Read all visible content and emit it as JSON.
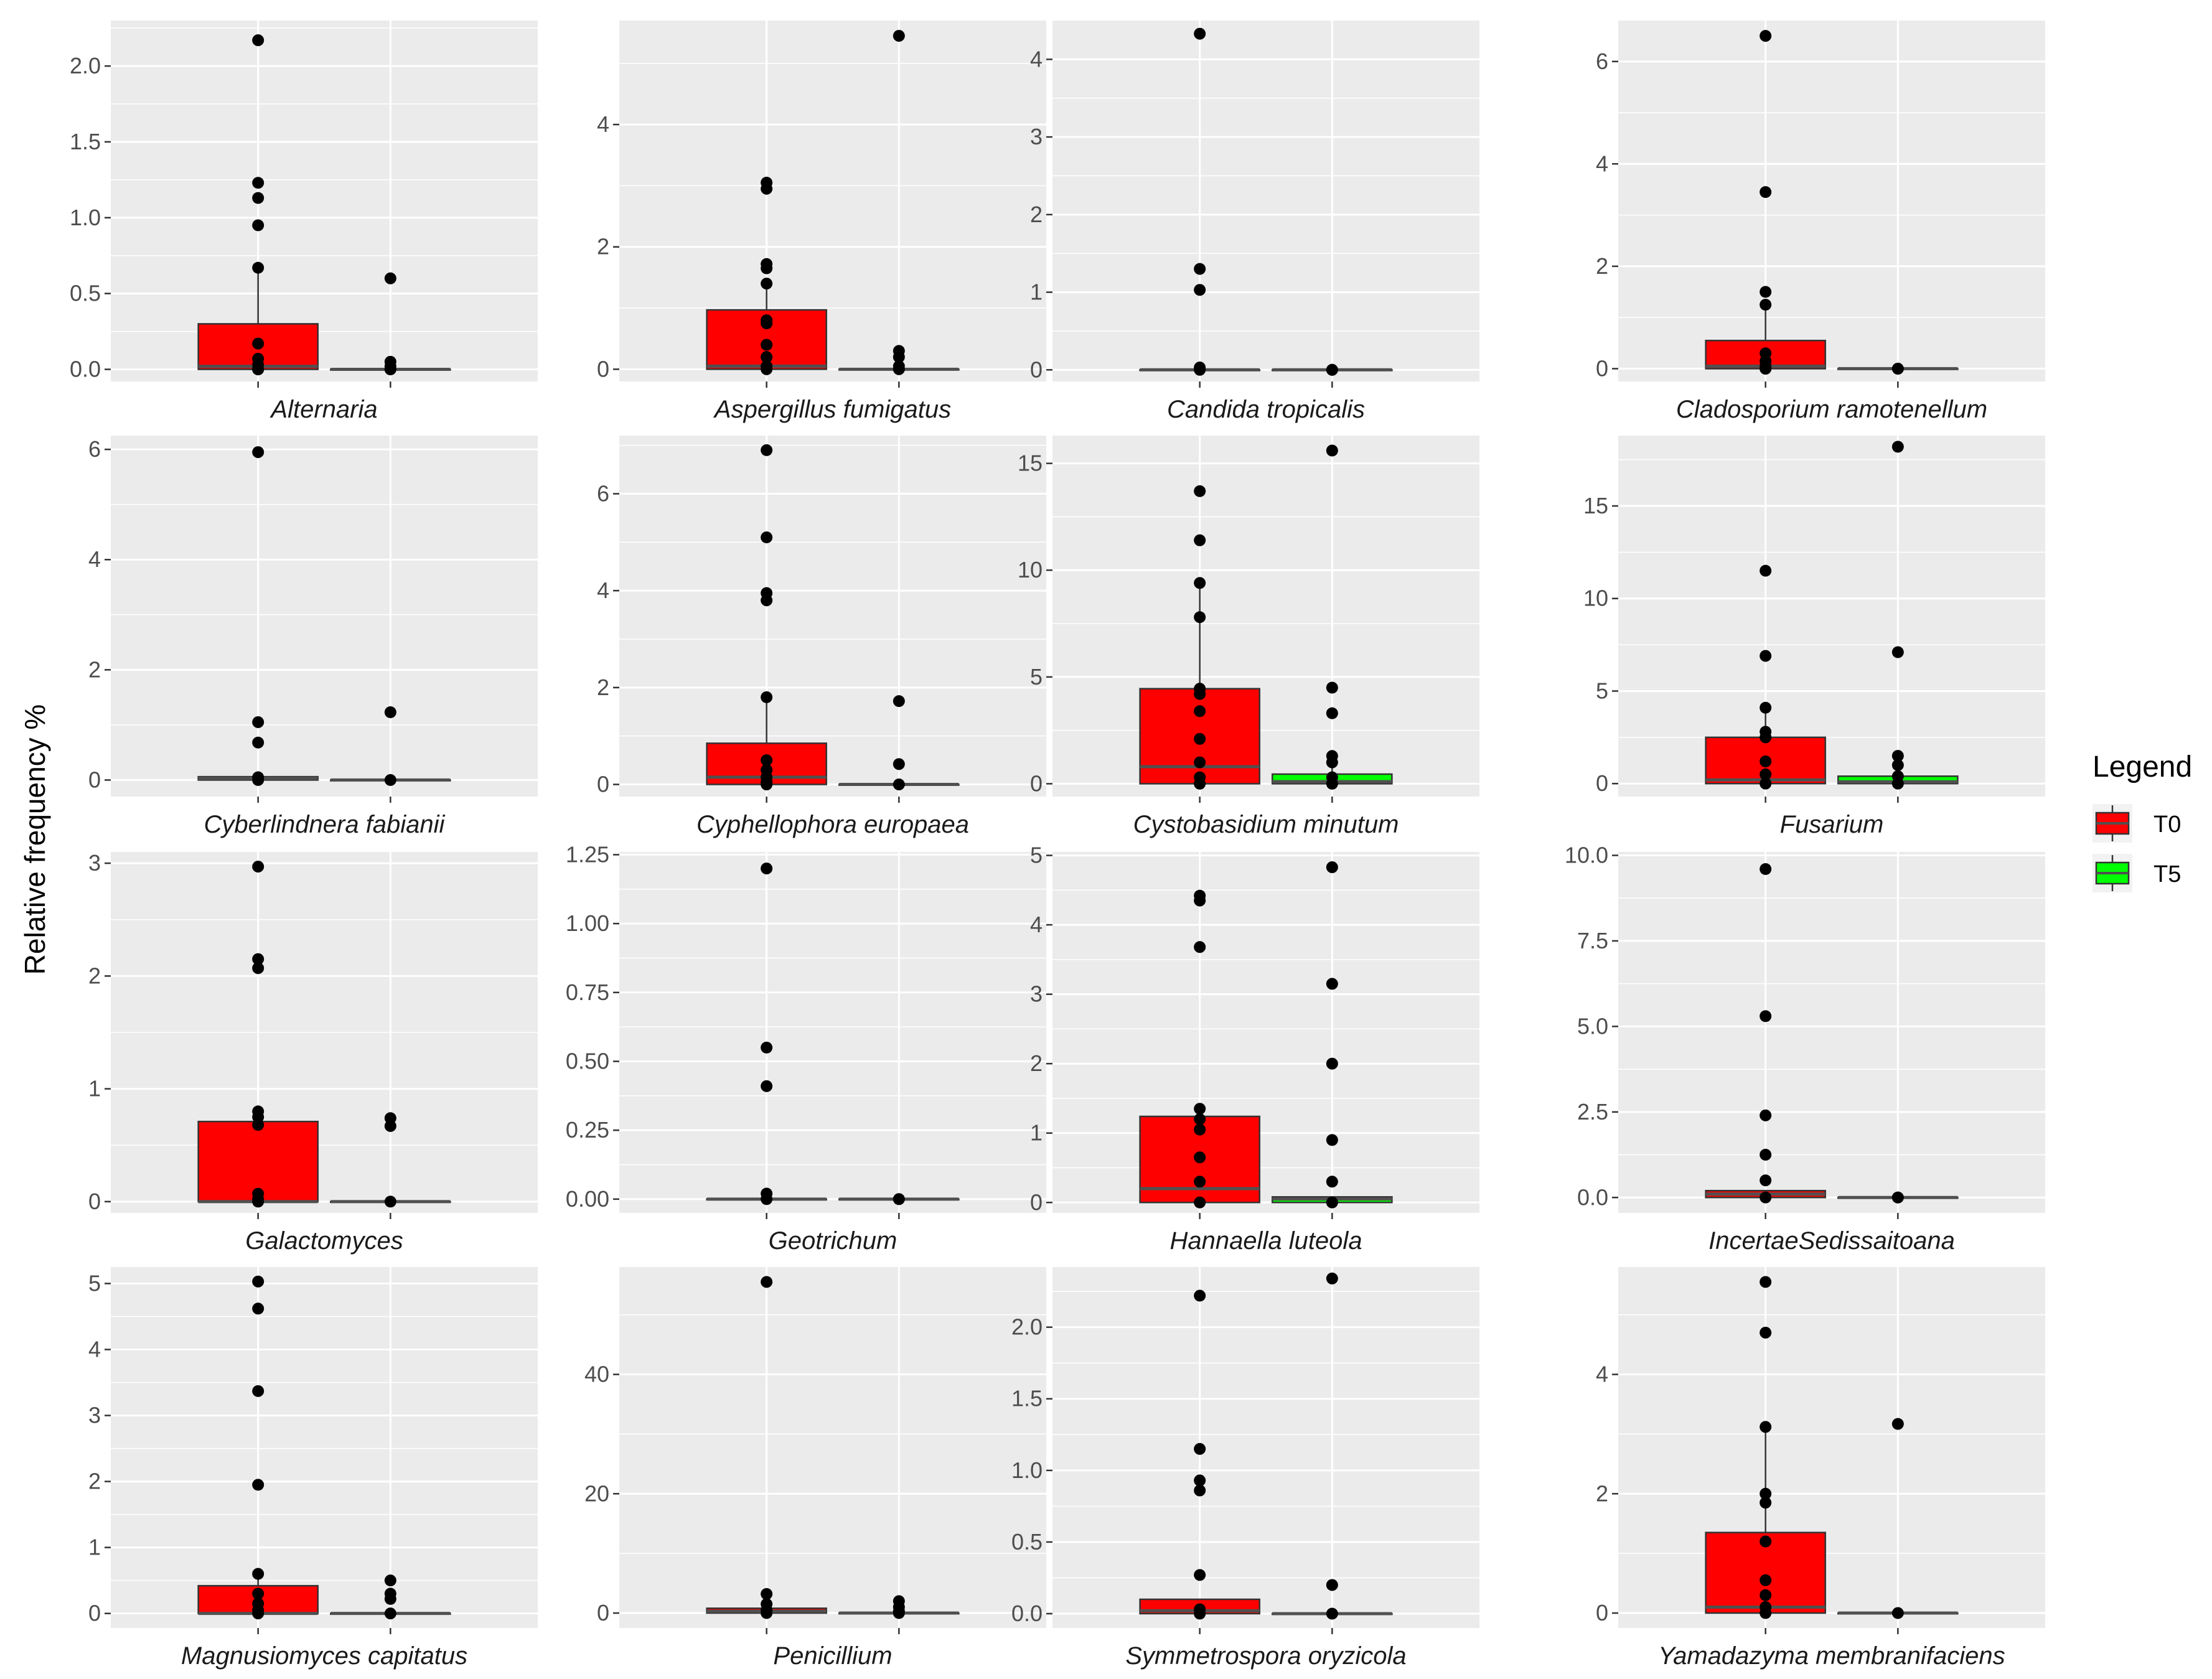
{
  "figure": {
    "ylabel": "Relative frequency %",
    "legend": {
      "title": "Legend",
      "position": "right",
      "items": [
        {
          "label": "T0",
          "color": "#FF0000"
        },
        {
          "label": "T5",
          "color": "#00FF00"
        }
      ]
    },
    "panel_background": "#EBEBEB",
    "grid_color": "#FFFFFF",
    "point_color": "#000000",
    "median_color": "#505050"
  },
  "chart_data": [
    {
      "type": "box",
      "title": "Alternaria",
      "ylim": [
        -0.08,
        2.3
      ],
      "yticks": [
        "0.0",
        "0.5",
        "1.0",
        "1.5",
        "2.0"
      ],
      "ytick_values": [
        0,
        0.5,
        1.0,
        1.5,
        2.0
      ],
      "groups": [
        {
          "name": "T0",
          "box": {
            "q1": 0,
            "median": 0.02,
            "q3": 0.3,
            "whisker_low": 0,
            "whisker_high": 0.67
          },
          "points": [
            2.17,
            1.23,
            1.13,
            0.95,
            0.67,
            0.17,
            0.07,
            0.03,
            0.0,
            0.0,
            0.0
          ]
        },
        {
          "name": "T5",
          "box": {
            "q1": 0,
            "median": 0,
            "q3": 0,
            "whisker_low": 0,
            "whisker_high": 0
          },
          "points": [
            0.6,
            0.05,
            0.02,
            0.0,
            0.0
          ]
        }
      ]
    },
    {
      "type": "box",
      "title": "Aspergillus fumigatus",
      "ylim": [
        -0.2,
        5.7
      ],
      "yticks": [
        "0",
        "2",
        "4"
      ],
      "ytick_values": [
        0,
        2,
        4
      ],
      "groups": [
        {
          "name": "T0",
          "box": {
            "q1": 0,
            "median": 0.05,
            "q3": 0.97,
            "whisker_low": 0,
            "whisker_high": 1.4
          },
          "points": [
            3.05,
            2.95,
            1.72,
            1.65,
            1.4,
            0.8,
            0.75,
            0.4,
            0.2,
            0.05,
            0.0
          ]
        },
        {
          "name": "T5",
          "box": {
            "q1": 0,
            "median": 0,
            "q3": 0,
            "whisker_low": 0,
            "whisker_high": 0
          },
          "points": [
            5.45,
            0.3,
            0.2,
            0.05,
            0.0
          ]
        }
      ]
    },
    {
      "type": "box",
      "title": "Candida tropicalis",
      "ylim": [
        -0.15,
        4.5
      ],
      "yticks": [
        "0",
        "1",
        "2",
        "3",
        "4"
      ],
      "ytick_values": [
        0,
        1,
        2,
        3,
        4
      ],
      "groups": [
        {
          "name": "T0",
          "box": {
            "q1": 0,
            "median": 0,
            "q3": 0,
            "whisker_low": 0,
            "whisker_high": 0
          },
          "points": [
            4.33,
            1.3,
            1.03,
            0.03,
            0.0
          ]
        },
        {
          "name": "T5",
          "box": {
            "q1": 0,
            "median": 0,
            "q3": 0,
            "whisker_low": 0,
            "whisker_high": 0
          },
          "points": [
            0.0,
            0.0
          ]
        }
      ]
    },
    {
      "type": "box",
      "title": "Cladosporium ramotenellum",
      "ylim": [
        -0.25,
        6.8
      ],
      "yticks": [
        "0",
        "2",
        "4",
        "6"
      ],
      "ytick_values": [
        0,
        2,
        4,
        6
      ],
      "groups": [
        {
          "name": "T0",
          "box": {
            "q1": 0,
            "median": 0.05,
            "q3": 0.55,
            "whisker_low": 0,
            "whisker_high": 1.35
          },
          "points": [
            6.5,
            3.45,
            1.5,
            1.25,
            0.3,
            0.15,
            0.05,
            0.0,
            0.0
          ]
        },
        {
          "name": "T5",
          "box": {
            "q1": 0,
            "median": 0,
            "q3": 0,
            "whisker_low": 0,
            "whisker_high": 0
          },
          "points": [
            0.0,
            0.0
          ]
        }
      ]
    },
    {
      "type": "box",
      "title": "Cyberlindnera fabianii",
      "ylim": [
        -0.3,
        6.25
      ],
      "yticks": [
        "0",
        "2",
        "4",
        "6"
      ],
      "ytick_values": [
        0,
        2,
        4,
        6
      ],
      "groups": [
        {
          "name": "T0",
          "box": {
            "q1": 0,
            "median": 0.03,
            "q3": 0.06,
            "whisker_low": 0,
            "whisker_high": 0.06
          },
          "points": [
            5.95,
            1.05,
            0.68,
            0.05,
            0.0
          ]
        },
        {
          "name": "T5",
          "box": {
            "q1": 0,
            "median": 0,
            "q3": 0,
            "whisker_low": 0,
            "whisker_high": 0
          },
          "points": [
            1.23,
            0.0
          ]
        }
      ]
    },
    {
      "type": "box",
      "title": "Cyphellophora europaea",
      "ylim": [
        -0.25,
        7.2
      ],
      "yticks": [
        "0",
        "2",
        "4",
        "6"
      ],
      "ytick_values": [
        0,
        2,
        4,
        6
      ],
      "groups": [
        {
          "name": "T0",
          "box": {
            "q1": 0,
            "median": 0.15,
            "q3": 0.85,
            "whisker_low": 0,
            "whisker_high": 1.8
          },
          "points": [
            6.9,
            5.1,
            3.95,
            3.8,
            1.8,
            0.5,
            0.3,
            0.15,
            0.05,
            0.0
          ]
        },
        {
          "name": "T5",
          "box": {
            "q1": 0,
            "median": 0,
            "q3": 0,
            "whisker_low": 0,
            "whisker_high": 0
          },
          "points": [
            1.72,
            0.42,
            0.0
          ]
        }
      ]
    },
    {
      "type": "box",
      "title": "Cystobasidium minutum",
      "ylim": [
        -0.6,
        16.3
      ],
      "yticks": [
        "0",
        "5",
        "10",
        "15"
      ],
      "ytick_values": [
        0,
        5,
        10,
        15
      ],
      "groups": [
        {
          "name": "T0",
          "box": {
            "q1": 0,
            "median": 0.8,
            "q3": 4.45,
            "whisker_low": 0,
            "whisker_high": 9.4
          },
          "points": [
            13.7,
            11.4,
            9.4,
            7.8,
            4.45,
            4.2,
            3.4,
            2.1,
            1.0,
            0.3,
            0.0
          ]
        },
        {
          "name": "T5",
          "box": {
            "q1": 0,
            "median": 0.1,
            "q3": 0.45,
            "whisker_low": 0,
            "whisker_high": 1.0
          },
          "points": [
            15.6,
            4.5,
            3.3,
            1.3,
            1.0,
            0.3,
            0.0
          ]
        }
      ]
    },
    {
      "type": "box",
      "title": "Fusarium",
      "ylim": [
        -0.7,
        18.8
      ],
      "yticks": [
        "0",
        "5",
        "10",
        "15"
      ],
      "ytick_values": [
        0,
        5,
        10,
        15
      ],
      "groups": [
        {
          "name": "T0",
          "box": {
            "q1": 0,
            "median": 0.2,
            "q3": 2.5,
            "whisker_low": 0,
            "whisker_high": 4.1
          },
          "points": [
            11.5,
            6.9,
            4.1,
            2.8,
            2.5,
            1.2,
            0.5,
            0.0
          ]
        },
        {
          "name": "T5",
          "box": {
            "q1": 0,
            "median": 0.1,
            "q3": 0.4,
            "whisker_low": 0,
            "whisker_high": 1.0
          },
          "points": [
            18.2,
            7.1,
            1.5,
            1.0,
            0.4,
            0.0
          ]
        }
      ]
    },
    {
      "type": "box",
      "title": "Galactomyces",
      "ylim": [
        -0.1,
        3.1
      ],
      "yticks": [
        "0",
        "1",
        "2",
        "3"
      ],
      "ytick_values": [
        0,
        1,
        2,
        3
      ],
      "groups": [
        {
          "name": "T0",
          "box": {
            "q1": 0,
            "median": 0,
            "q3": 0.71,
            "whisker_low": 0,
            "whisker_high": 0.8
          },
          "points": [
            2.97,
            2.15,
            2.07,
            0.8,
            0.75,
            0.68,
            0.07,
            0.02,
            0.0
          ]
        },
        {
          "name": "T5",
          "box": {
            "q1": 0,
            "median": 0,
            "q3": 0,
            "whisker_low": 0,
            "whisker_high": 0
          },
          "points": [
            0.74,
            0.67,
            0.0
          ]
        }
      ]
    },
    {
      "type": "box",
      "title": "Geotrichum",
      "ylim": [
        -0.05,
        1.26
      ],
      "yticks": [
        "0.00",
        "0.25",
        "0.50",
        "0.75",
        "1.00",
        "1.25"
      ],
      "ytick_values": [
        0,
        0.25,
        0.5,
        0.75,
        1.0,
        1.25
      ],
      "groups": [
        {
          "name": "T0",
          "box": {
            "q1": 0,
            "median": 0,
            "q3": 0,
            "whisker_low": 0,
            "whisker_high": 0
          },
          "points": [
            1.2,
            0.55,
            0.41,
            0.02,
            0.0
          ]
        },
        {
          "name": "T5",
          "box": {
            "q1": 0,
            "median": 0,
            "q3": 0,
            "whisker_low": 0,
            "whisker_high": 0
          },
          "points": [
            0.0,
            0.0
          ]
        }
      ]
    },
    {
      "type": "box",
      "title": "Hannaella luteola",
      "ylim": [
        -0.15,
        5.05
      ],
      "yticks": [
        "0",
        "1",
        "2",
        "3",
        "4",
        "5"
      ],
      "ytick_values": [
        0,
        1,
        2,
        3,
        4,
        5
      ],
      "groups": [
        {
          "name": "T0",
          "box": {
            "q1": 0,
            "median": 0.2,
            "q3": 1.24,
            "whisker_low": 0,
            "whisker_high": 1.35
          },
          "points": [
            4.42,
            4.35,
            3.68,
            1.35,
            1.2,
            1.05,
            0.65,
            0.3,
            0.0
          ]
        },
        {
          "name": "T5",
          "box": {
            "q1": 0,
            "median": 0.05,
            "q3": 0.08,
            "whisker_low": 0,
            "whisker_high": 0.08
          },
          "points": [
            4.83,
            3.15,
            2.0,
            0.9,
            0.3,
            0.0
          ]
        }
      ]
    },
    {
      "type": "box",
      "title": "IncertaeSedissaitoana",
      "ylim": [
        -0.45,
        10.1
      ],
      "yticks": [
        "0.0",
        "2.5",
        "5.0",
        "7.5",
        "10.0"
      ],
      "ytick_values": [
        0,
        2.5,
        5.0,
        7.5,
        10.0
      ],
      "groups": [
        {
          "name": "T0",
          "box": {
            "q1": 0,
            "median": 0.1,
            "q3": 0.2,
            "whisker_low": 0,
            "whisker_high": 0.2
          },
          "points": [
            9.6,
            5.3,
            2.4,
            1.25,
            0.5,
            0.0
          ]
        },
        {
          "name": "T5",
          "box": {
            "q1": 0,
            "median": 0,
            "q3": 0,
            "whisker_low": 0,
            "whisker_high": 0
          },
          "points": [
            0.0,
            0.0
          ]
        }
      ]
    },
    {
      "type": "box",
      "title": "Magnusiomyces capitatus",
      "ylim": [
        -0.22,
        5.25
      ],
      "yticks": [
        "0",
        "1",
        "2",
        "3",
        "4",
        "5"
      ],
      "ytick_values": [
        0,
        1,
        2,
        3,
        4,
        5
      ],
      "groups": [
        {
          "name": "T0",
          "box": {
            "q1": 0,
            "median": 0,
            "q3": 0.42,
            "whisker_low": 0,
            "whisker_high": 0.6
          },
          "points": [
            5.03,
            4.62,
            3.37,
            1.95,
            0.6,
            0.3,
            0.15,
            0.05,
            0.0
          ]
        },
        {
          "name": "T5",
          "box": {
            "q1": 0,
            "median": 0,
            "q3": 0,
            "whisker_low": 0,
            "whisker_high": 0
          },
          "points": [
            0.5,
            0.3,
            0.22,
            0.0
          ]
        }
      ]
    },
    {
      "type": "box",
      "title": "Penicillium",
      "ylim": [
        -2.5,
        58
      ],
      "yticks": [
        "0",
        "20",
        "40"
      ],
      "ytick_values": [
        0,
        20,
        40
      ],
      "groups": [
        {
          "name": "T0",
          "box": {
            "q1": 0,
            "median": 0.3,
            "q3": 0.8,
            "whisker_low": 0,
            "whisker_high": 1.5
          },
          "points": [
            55.5,
            3.2,
            1.5,
            0.5,
            0.0
          ]
        },
        {
          "name": "T5",
          "box": {
            "q1": 0,
            "median": 0,
            "q3": 0,
            "whisker_low": 0,
            "whisker_high": 0
          },
          "points": [
            2.0,
            1.0,
            0.3,
            0.0
          ]
        }
      ]
    },
    {
      "type": "box",
      "title": "Symmetrospora oryzicola",
      "ylim": [
        -0.1,
        2.42
      ],
      "yticks": [
        "0.0",
        "0.5",
        "1.0",
        "1.5",
        "2.0"
      ],
      "ytick_values": [
        0,
        0.5,
        1.0,
        1.5,
        2.0
      ],
      "groups": [
        {
          "name": "T0",
          "box": {
            "q1": 0,
            "median": 0.02,
            "q3": 0.1,
            "whisker_low": 0,
            "whisker_high": 0.1
          },
          "points": [
            2.22,
            1.15,
            0.93,
            0.86,
            0.27,
            0.03,
            0.0
          ]
        },
        {
          "name": "T5",
          "box": {
            "q1": 0,
            "median": 0,
            "q3": 0,
            "whisker_low": 0,
            "whisker_high": 0
          },
          "points": [
            2.34,
            0.2,
            0.0
          ]
        }
      ]
    },
    {
      "type": "box",
      "title": "Yamadazyma membranifaciens",
      "ylim": [
        -0.25,
        5.8
      ],
      "yticks": [
        "0",
        "2",
        "4"
      ],
      "ytick_values": [
        0,
        2,
        4
      ],
      "groups": [
        {
          "name": "T0",
          "box": {
            "q1": 0,
            "median": 0.1,
            "q3": 1.35,
            "whisker_low": 0,
            "whisker_high": 3.1
          },
          "points": [
            5.55,
            4.7,
            3.12,
            2.0,
            1.85,
            1.2,
            0.55,
            0.3,
            0.1,
            0.0
          ]
        },
        {
          "name": "T5",
          "box": {
            "q1": 0,
            "median": 0,
            "q3": 0,
            "whisker_low": 0,
            "whisker_high": 0
          },
          "points": [
            3.17,
            0.0
          ]
        }
      ]
    }
  ]
}
